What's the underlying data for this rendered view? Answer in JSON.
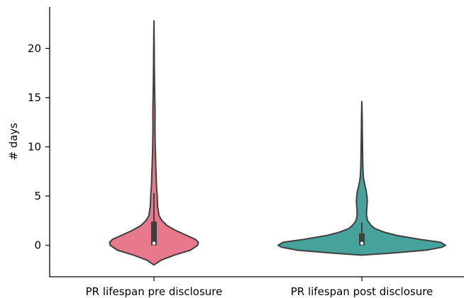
{
  "chart_data": {
    "type": "violin",
    "title": "",
    "xlabel": "",
    "ylabel": "# days",
    "ylim": [
      -3.2,
      24.2
    ],
    "yticks": [
      0,
      5,
      10,
      15,
      20
    ],
    "categories": [
      "PR lifespan pre disclosure",
      "PR lifespan post disclosure"
    ],
    "series": [
      {
        "color": "#e8788b",
        "min": -2.0,
        "max": 22.8,
        "whisker_low": 0.0,
        "whisker_high": 5.3,
        "q1": 0.0,
        "median": 0.2,
        "q3": 2.4,
        "density": [
          [
            -2.0,
            0.0
          ],
          [
            -1.5,
            0.1
          ],
          [
            -1.0,
            0.28
          ],
          [
            -0.5,
            0.5
          ],
          [
            0.0,
            0.6
          ],
          [
            0.3,
            0.61
          ],
          [
            0.6,
            0.57
          ],
          [
            1.0,
            0.45
          ],
          [
            1.5,
            0.3
          ],
          [
            2.0,
            0.18
          ],
          [
            2.5,
            0.11
          ],
          [
            3.0,
            0.07
          ],
          [
            4.0,
            0.05
          ],
          [
            5.0,
            0.045
          ],
          [
            6.0,
            0.035
          ],
          [
            7.0,
            0.03
          ],
          [
            8.0,
            0.025
          ],
          [
            10.0,
            0.018
          ],
          [
            12.0,
            0.014
          ],
          [
            13.5,
            0.016
          ],
          [
            15.0,
            0.012
          ],
          [
            16.5,
            0.008
          ],
          [
            18.0,
            0.006
          ],
          [
            20.0,
            0.004
          ],
          [
            22.8,
            0.0
          ]
        ]
      },
      {
        "color": "#46a29a",
        "min": -1.0,
        "max": 14.6,
        "whisker_low": 0.0,
        "whisker_high": 2.3,
        "q1": 0.0,
        "median": 0.2,
        "q3": 1.2,
        "density": [
          [
            -1.0,
            0.0
          ],
          [
            -0.8,
            0.4
          ],
          [
            -0.5,
            0.88
          ],
          [
            -0.2,
            1.1
          ],
          [
            0.0,
            1.15
          ],
          [
            0.3,
            1.08
          ],
          [
            0.6,
            0.8
          ],
          [
            1.0,
            0.48
          ],
          [
            1.3,
            0.32
          ],
          [
            1.7,
            0.18
          ],
          [
            2.0,
            0.13
          ],
          [
            2.5,
            0.08
          ],
          [
            3.0,
            0.065
          ],
          [
            3.5,
            0.065
          ],
          [
            4.0,
            0.07
          ],
          [
            4.5,
            0.075
          ],
          [
            5.0,
            0.07
          ],
          [
            5.5,
            0.06
          ],
          [
            6.0,
            0.045
          ],
          [
            6.5,
            0.03
          ],
          [
            7.0,
            0.02
          ],
          [
            8.0,
            0.015
          ],
          [
            9.0,
            0.012
          ],
          [
            10.0,
            0.01
          ],
          [
            11.0,
            0.008
          ],
          [
            12.0,
            0.006
          ],
          [
            13.0,
            0.005
          ],
          [
            14.6,
            0.0
          ]
        ]
      }
    ],
    "grid": false,
    "legend": false
  }
}
